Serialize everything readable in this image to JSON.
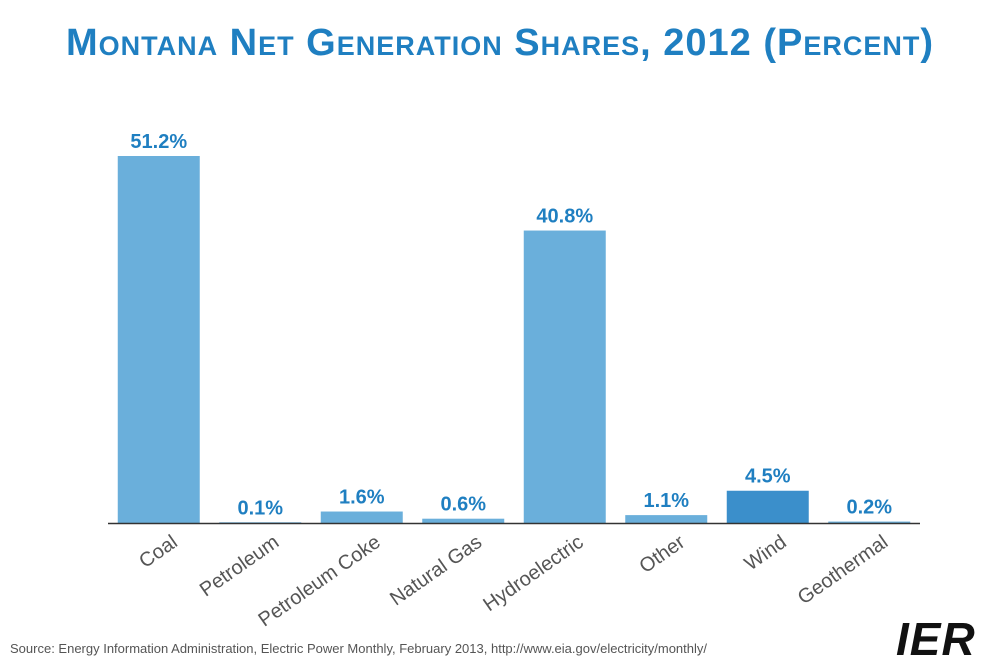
{
  "chart_data": {
    "type": "bar",
    "title": "Montana Net Generation Shares, 2012 (Percent)",
    "categories": [
      "Coal",
      "Petroleum",
      "Petroleum Coke",
      "Natural Gas",
      "Hydroelectric",
      "Other",
      "Wind",
      "Geothermal"
    ],
    "values": [
      51.2,
      0.1,
      1.6,
      0.6,
      40.8,
      1.1,
      4.5,
      0.2
    ],
    "data_labels": [
      "51.2%",
      "0.1%",
      "1.6%",
      "0.6%",
      "40.8%",
      "1.1%",
      "4.5%",
      "0.2%"
    ],
    "highlight_category": "Wind",
    "xlabel": "",
    "ylabel": "",
    "ylim": [
      0,
      51.2
    ],
    "grid": false,
    "colors": {
      "bar": "#6aafdb",
      "highlight_bar": "#3b8fcb",
      "label": "#1f7fc1",
      "axis": "#333333",
      "tick_label": "#555555"
    }
  },
  "source": "Source: Energy Information Administration, Electric Power Monthly, February 2013, http://www.eia.gov/electricity/monthly/",
  "logo": "IER"
}
